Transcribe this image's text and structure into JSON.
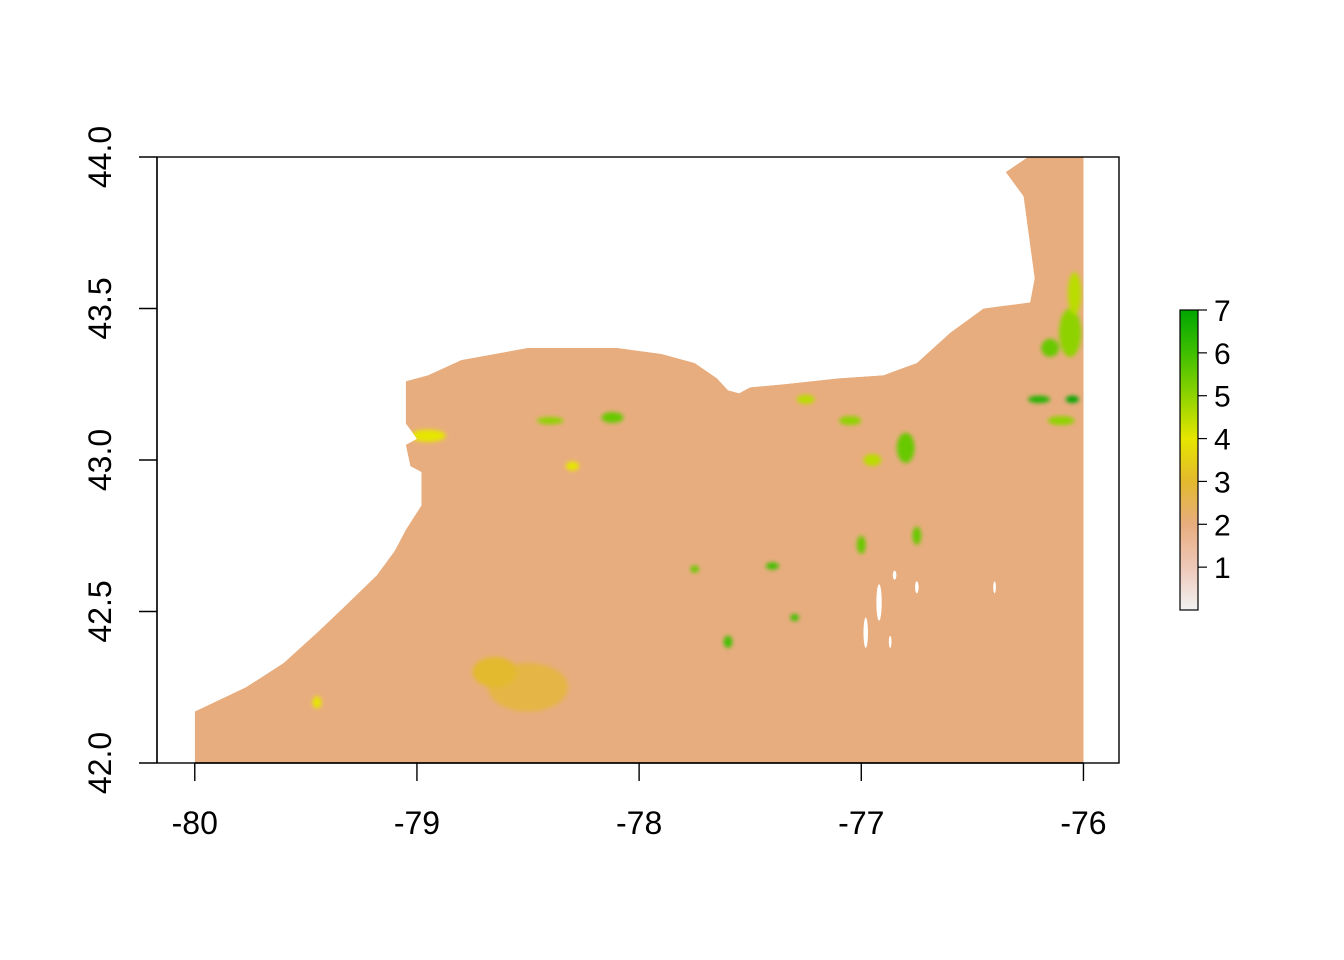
{
  "chart_data": {
    "type": "heatmap",
    "title": "",
    "xlabel": "",
    "ylabel": "",
    "xlim": [
      -80.17,
      -75.84
    ],
    "ylim": [
      42.0,
      44.0
    ],
    "x_ticks": [
      {
        "value": -80,
        "label": "-80"
      },
      {
        "value": -79,
        "label": "-79"
      },
      {
        "value": -78,
        "label": "-78"
      },
      {
        "value": -77,
        "label": "-77"
      },
      {
        "value": -76,
        "label": "-76"
      }
    ],
    "y_ticks": [
      {
        "value": 42.0,
        "label": "42.0"
      },
      {
        "value": 42.5,
        "label": "42.5"
      },
      {
        "value": 43.0,
        "label": "43.0"
      },
      {
        "value": 43.5,
        "label": "43.5"
      },
      {
        "value": 44.0,
        "label": "44.0"
      }
    ],
    "raster_extent": {
      "xmin": -80.0,
      "xmax": -76.0,
      "ymin": 42.0,
      "ymax": 44.0
    },
    "legend": {
      "placement": "right",
      "range": [
        0,
        7
      ],
      "ticks": [
        {
          "value": 1,
          "label": "1"
        },
        {
          "value": 2,
          "label": "2"
        },
        {
          "value": 3,
          "label": "3"
        },
        {
          "value": 4,
          "label": "4"
        },
        {
          "value": 5,
          "label": "5"
        },
        {
          "value": 6,
          "label": "6"
        },
        {
          "value": 7,
          "label": "7"
        }
      ],
      "color_stops": [
        {
          "value": 0.0,
          "color": "#f2f2f2"
        },
        {
          "value": 1.0,
          "color": "#eec8b8"
        },
        {
          "value": 2.0,
          "color": "#e8ad7e"
        },
        {
          "value": 3.0,
          "color": "#e3b92d"
        },
        {
          "value": 4.0,
          "color": "#e6e600"
        },
        {
          "value": 5.0,
          "color": "#8ed300"
        },
        {
          "value": 6.0,
          "color": "#3fbf00"
        },
        {
          "value": 7.0,
          "color": "#00a600"
        }
      ]
    },
    "base_value": 2.0,
    "landmass_outline": [
      [
        -80.0,
        42.0
      ],
      [
        -76.0,
        42.0
      ],
      [
        -76.0,
        44.0
      ],
      [
        -76.25,
        44.0
      ],
      [
        -76.35,
        43.95
      ],
      [
        -76.27,
        43.87
      ],
      [
        -76.22,
        43.6
      ],
      [
        -76.24,
        43.52
      ],
      [
        -76.35,
        43.51
      ],
      [
        -76.45,
        43.5
      ],
      [
        -76.6,
        43.42
      ],
      [
        -76.75,
        43.32
      ],
      [
        -76.9,
        43.28
      ],
      [
        -77.1,
        43.27
      ],
      [
        -77.35,
        43.25
      ],
      [
        -77.5,
        43.24
      ],
      [
        -77.55,
        43.22
      ],
      [
        -77.6,
        43.23
      ],
      [
        -77.65,
        43.27
      ],
      [
        -77.75,
        43.32
      ],
      [
        -77.9,
        43.35
      ],
      [
        -78.1,
        43.37
      ],
      [
        -78.5,
        43.37
      ],
      [
        -78.8,
        43.33
      ],
      [
        -78.95,
        43.28
      ],
      [
        -79.05,
        43.26
      ],
      [
        -79.05,
        43.12
      ],
      [
        -79.0,
        43.07
      ],
      [
        -79.05,
        43.05
      ],
      [
        -79.03,
        42.98
      ],
      [
        -78.98,
        42.96
      ],
      [
        -78.98,
        42.85
      ],
      [
        -79.05,
        42.77
      ],
      [
        -79.1,
        42.7
      ],
      [
        -79.18,
        42.62
      ],
      [
        -79.32,
        42.52
      ],
      [
        -79.45,
        42.43
      ],
      [
        -79.6,
        42.33
      ],
      [
        -79.77,
        42.25
      ],
      [
        -80.0,
        42.17
      ]
    ],
    "highlight_patches": [
      {
        "x": -78.4,
        "y": 43.13,
        "rx": 0.06,
        "ry": 0.012,
        "value": 5
      },
      {
        "x": -78.12,
        "y": 43.14,
        "rx": 0.05,
        "ry": 0.018,
        "value": 5.5
      },
      {
        "x": -78.95,
        "y": 43.08,
        "rx": 0.08,
        "ry": 0.02,
        "value": 4
      },
      {
        "x": -76.8,
        "y": 43.04,
        "rx": 0.04,
        "ry": 0.05,
        "value": 5.5
      },
      {
        "x": -76.2,
        "y": 43.2,
        "rx": 0.05,
        "ry": 0.012,
        "value": 6.5
      },
      {
        "x": -76.05,
        "y": 43.2,
        "rx": 0.03,
        "ry": 0.012,
        "value": 7
      },
      {
        "x": -76.06,
        "y": 43.42,
        "rx": 0.05,
        "ry": 0.08,
        "value": 5
      },
      {
        "x": -76.04,
        "y": 43.55,
        "rx": 0.03,
        "ry": 0.07,
        "value": 4.5
      },
      {
        "x": -76.15,
        "y": 43.37,
        "rx": 0.04,
        "ry": 0.03,
        "value": 5.5
      },
      {
        "x": -76.1,
        "y": 43.13,
        "rx": 0.06,
        "ry": 0.015,
        "value": 5
      },
      {
        "x": -77.25,
        "y": 43.2,
        "rx": 0.04,
        "ry": 0.015,
        "value": 4.5
      },
      {
        "x": -77.05,
        "y": 43.13,
        "rx": 0.05,
        "ry": 0.015,
        "value": 5
      },
      {
        "x": -77.0,
        "y": 42.72,
        "rx": 0.02,
        "ry": 0.03,
        "value": 5.5
      },
      {
        "x": -77.4,
        "y": 42.65,
        "rx": 0.03,
        "ry": 0.012,
        "value": 6
      },
      {
        "x": -77.75,
        "y": 42.64,
        "rx": 0.02,
        "ry": 0.012,
        "value": 5.5
      },
      {
        "x": -77.3,
        "y": 42.48,
        "rx": 0.02,
        "ry": 0.012,
        "value": 6
      },
      {
        "x": -78.5,
        "y": 42.25,
        "rx": 0.18,
        "ry": 0.08,
        "value": 2.7
      },
      {
        "x": -78.65,
        "y": 42.3,
        "rx": 0.1,
        "ry": 0.05,
        "value": 3
      },
      {
        "x": -79.45,
        "y": 42.2,
        "rx": 0.02,
        "ry": 0.02,
        "value": 4
      },
      {
        "x": -76.75,
        "y": 42.75,
        "rx": 0.02,
        "ry": 0.03,
        "value": 5.5
      },
      {
        "x": -76.95,
        "y": 43.0,
        "rx": 0.04,
        "ry": 0.02,
        "value": 4.5
      },
      {
        "x": -77.6,
        "y": 42.4,
        "rx": 0.02,
        "ry": 0.02,
        "value": 6
      },
      {
        "x": -78.3,
        "y": 42.98,
        "rx": 0.03,
        "ry": 0.015,
        "value": 4
      }
    ],
    "nodata_patches": [
      {
        "x": -76.92,
        "y": 42.53,
        "rx": 0.012,
        "ry": 0.06
      },
      {
        "x": -76.98,
        "y": 42.43,
        "rx": 0.01,
        "ry": 0.05
      },
      {
        "x": -76.75,
        "y": 42.58,
        "rx": 0.008,
        "ry": 0.02
      },
      {
        "x": -76.85,
        "y": 42.62,
        "rx": 0.008,
        "ry": 0.015
      },
      {
        "x": -76.87,
        "y": 42.4,
        "rx": 0.006,
        "ry": 0.02
      },
      {
        "x": -76.4,
        "y": 42.58,
        "rx": 0.006,
        "ry": 0.02
      }
    ]
  }
}
